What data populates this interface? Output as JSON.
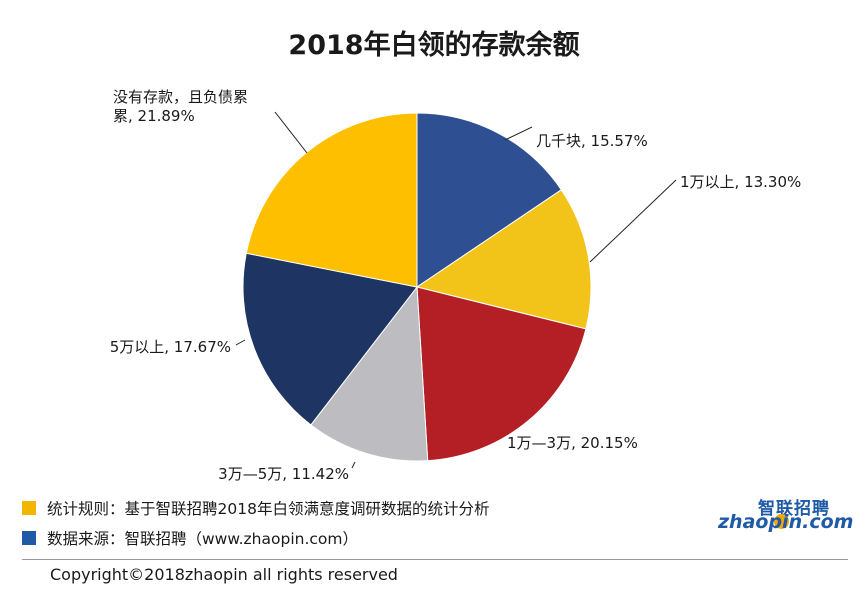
{
  "chart_data": {
    "type": "pie",
    "title": "2018年白领的存款余额",
    "slices": [
      {
        "label": "几千块, 15.57%",
        "value": 15.57,
        "color": "#2e4f92"
      },
      {
        "label": "1万以上, 13.30%",
        "value": 13.3,
        "color": "#f2c419"
      },
      {
        "label": "1万—3万, 20.15%",
        "value": 20.15,
        "color": "#b31f24"
      },
      {
        "label": "3万—5万, 11.42%",
        "value": 11.42,
        "color": "#bdbdc1"
      },
      {
        "label": "5万以上, 17.67%",
        "value": 17.67,
        "color": "#1e3462"
      },
      {
        "label": "没有存款，且负债累累, 21.89%",
        "label_lines": [
          "没有存款，且负债累",
          "累, 21.89%"
        ],
        "value": 21.89,
        "color": "#fdbf00"
      }
    ]
  },
  "footnotes": [
    {
      "text": "统计规则：基于智联招聘2018年白领满意度调研数据的统计分析",
      "color": "#f2b600"
    },
    {
      "text": "数据来源：智联招聘（www.zhaopin.com）",
      "color": "#1f5aa6"
    }
  ],
  "logo": {
    "cn": "智联招聘",
    "en": "zhaopin.com"
  },
  "copyright": "Copyright©2018zhaopin all rights reserved"
}
